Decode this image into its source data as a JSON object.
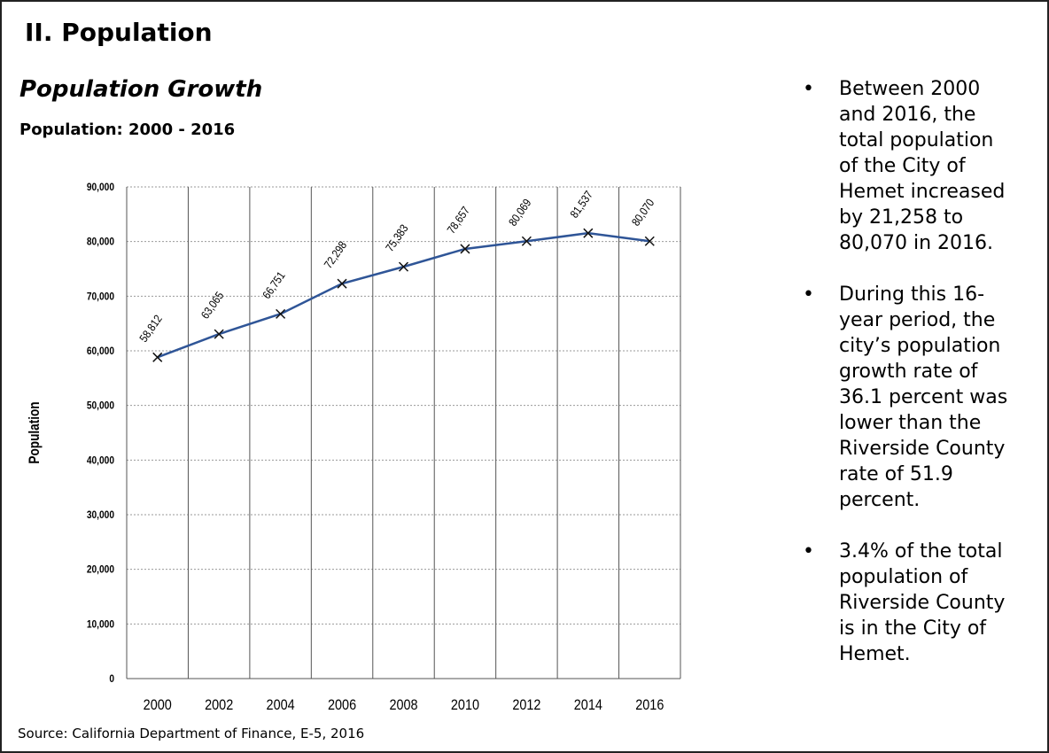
{
  "header": {
    "title": "II. Population",
    "subtitle": "Population Growth",
    "chart_heading": "Population: 2000 - 2016"
  },
  "chart_data": {
    "type": "line",
    "y_label": "Population",
    "categories": [
      "2000",
      "2002",
      "2004",
      "2006",
      "2008",
      "2010",
      "2012",
      "2014",
      "2016"
    ],
    "values": [
      58812,
      63065,
      66751,
      72298,
      75383,
      78657,
      80069,
      81537,
      80070
    ],
    "value_labels": [
      "58,812",
      "63,065",
      "66,751",
      "72,298",
      "75,383",
      "78,657",
      "80,069",
      "81,537",
      "80,070"
    ],
    "color": "#2f5597",
    "ylim": [
      0,
      90000
    ],
    "yticks": [
      0,
      {
        "value": 10000,
        "label": "10,000"
      },
      {
        "value": 20000,
        "label": "20,000"
      },
      {
        "value": 30000,
        "label": "30,000"
      },
      {
        "value": 40000,
        "label": "40,000"
      },
      {
        "value": 50000,
        "label": "50,000"
      },
      {
        "value": 60000,
        "label": "60,000"
      },
      {
        "value": 70000,
        "label": "70,000"
      },
      {
        "value": 80000,
        "label": "80,000"
      },
      {
        "value": 90000,
        "label": "90,000"
      }
    ],
    "grid": true
  },
  "bullets": [
    "Between 2000 and 2016, the total population of the City of Hemet increased by 21,258 to 80,070 in 2016.",
    "During this 16-year period, the city’s population growth rate of 36.1 percent was lower than the Riverside County rate of 51.9 percent.",
    "3.4% of the total population of Riverside County is in the City of Hemet."
  ],
  "source": "Source: California Department of Finance, E-5, 2016"
}
